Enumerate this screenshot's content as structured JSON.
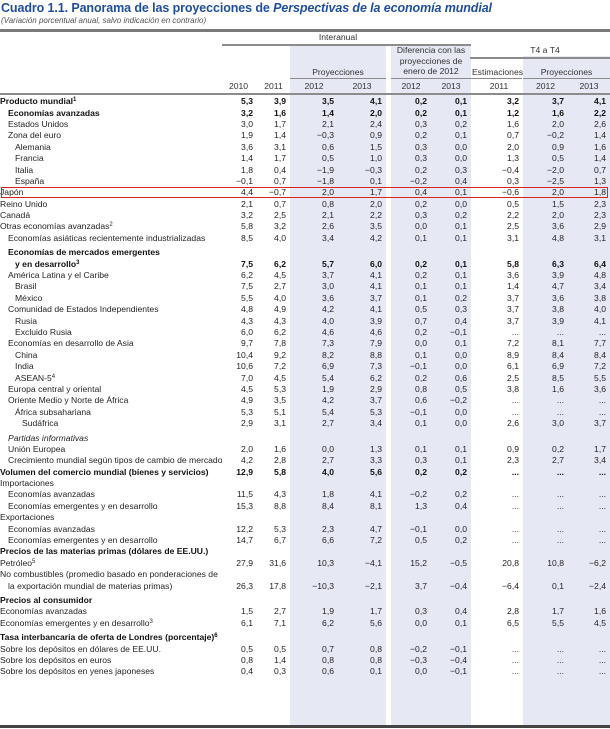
{
  "header": {
    "title_prefix": "Cuadro 1.1. Panorama de las proyecciones de ",
    "title_italic": "Perspectivas de la economía mundial",
    "subtitle": "(Variación porcentual anual, salvo indicación en contrario)"
  },
  "columns": {
    "group_interanual": "Interanual",
    "group_diferencia": "Diferencia con las proyecciones de enero de 2012",
    "group_t4": "T4 a T4",
    "proyecciones": "Proyecciones",
    "estimaciones": "Estimaciones",
    "years": [
      "2010",
      "2011",
      "2012",
      "2013",
      "2012",
      "2013",
      "2011",
      "2012",
      "2013"
    ]
  },
  "highlight": {
    "row": "España",
    "color": "#d8232a"
  },
  "colors": {
    "title": "#1f4e9c",
    "shade": "#e6e9f4"
  },
  "rows": [
    {
      "label": "Producto mundial",
      "sup": "1",
      "style": "bold",
      "indent": 0,
      "values": [
        "5,3",
        "3,9",
        "3,5",
        "4,1",
        "0,2",
        "0,1",
        "3,2",
        "3,7",
        "4,1"
      ]
    },
    {
      "label": "Economías avanzadas",
      "style": "bold",
      "indent": 1,
      "values": [
        "3,2",
        "1,6",
        "1,4",
        "2,0",
        "0,2",
        "0,1",
        "1,2",
        "1,6",
        "2,2"
      ]
    },
    {
      "label": "Estados Unidos",
      "indent": 1,
      "values": [
        "3,0",
        "1,7",
        "2,1",
        "2,4",
        "0,3",
        "0,2",
        "1,6",
        "2,0",
        "2,6"
      ]
    },
    {
      "label": "Zona del euro",
      "indent": 1,
      "values": [
        "1,9",
        "1,4",
        "−0,3",
        "0,9",
        "0,2",
        "0,1",
        "0,7",
        "−0,2",
        "1,4"
      ]
    },
    {
      "label": "Alemania",
      "indent": 2,
      "values": [
        "3,6",
        "3,1",
        "0,6",
        "1,5",
        "0,3",
        "0,0",
        "2,0",
        "0,9",
        "1,6"
      ]
    },
    {
      "label": "Francia",
      "indent": 2,
      "values": [
        "1,4",
        "1,7",
        "0,5",
        "1,0",
        "0,3",
        "0,0",
        "1,3",
        "0,5",
        "1,4"
      ]
    },
    {
      "label": "Italia",
      "indent": 2,
      "values": [
        "1,8",
        "0,4",
        "−1,9",
        "−0,3",
        "0,2",
        "0,3",
        "−0,4",
        "−2,0",
        "0,7"
      ]
    },
    {
      "label": "España",
      "indent": 2,
      "values": [
        "−0,1",
        "0,7",
        "−1,8",
        "0,1",
        "−0,2",
        "0,4",
        "0,3",
        "−2,5",
        "1,3"
      ]
    },
    {
      "label": "Japón",
      "indent": 0,
      "values": [
        "4,4",
        "−0,7",
        "2,0",
        "1,7",
        "0,4",
        "0,1",
        "−0,6",
        "2,0",
        "1,8"
      ]
    },
    {
      "label": "Reino Unido",
      "indent": 0,
      "values": [
        "2,1",
        "0,7",
        "0,8",
        "2,0",
        "0,2",
        "0,0",
        "0,5",
        "1,5",
        "2,3"
      ]
    },
    {
      "label": "Canadá",
      "indent": 0,
      "values": [
        "3,2",
        "2,5",
        "2,1",
        "2,2",
        "0,3",
        "0,2",
        "2,2",
        "2,0",
        "2,3"
      ]
    },
    {
      "label": "Otras economías avanzadas",
      "sup": "2",
      "indent": 0,
      "values": [
        "5,8",
        "3,2",
        "2,6",
        "3,5",
        "0,0",
        "0,1",
        "2,5",
        "3,6",
        "2,9"
      ]
    },
    {
      "label": "Economías asiáticas recientemente industrializadas",
      "indent": 1,
      "values": [
        "8,5",
        "4,0",
        "3,4",
        "4,2",
        "0,1",
        "0,1",
        "3,1",
        "4,8",
        "3,1"
      ]
    },
    {
      "label": "Economías de mercados emergentes",
      "style": "bold",
      "indent": 1,
      "spaced": true,
      "values": [
        "",
        "",
        "",
        "",
        "",
        "",
        "",
        "",
        ""
      ]
    },
    {
      "label": "y en desarrollo",
      "sup": "3",
      "style": "bold",
      "indent": 2,
      "values": [
        "7,5",
        "6,2",
        "5,7",
        "6,0",
        "0,2",
        "0,1",
        "5,8",
        "6,3",
        "6,4"
      ]
    },
    {
      "label": "América Latina y el Caribe",
      "indent": 1,
      "values": [
        "6,2",
        "4,5",
        "3,7",
        "4,1",
        "0,2",
        "0,1",
        "3,6",
        "3,9",
        "4,8"
      ]
    },
    {
      "label": "Brasil",
      "indent": 2,
      "values": [
        "7,5",
        "2,7",
        "3,0",
        "4,1",
        "0,1",
        "0,1",
        "1,4",
        "4,7",
        "3,4"
      ]
    },
    {
      "label": "México",
      "indent": 2,
      "values": [
        "5,5",
        "4,0",
        "3,6",
        "3,7",
        "0,1",
        "0,2",
        "3,7",
        "3,6",
        "3,8"
      ]
    },
    {
      "label": "Comunidad de Estados Independientes",
      "indent": 1,
      "values": [
        "4,8",
        "4,9",
        "4,2",
        "4,1",
        "0,5",
        "0,3",
        "3,7",
        "3,8",
        "4,0"
      ]
    },
    {
      "label": "Rusia",
      "indent": 2,
      "values": [
        "4,3",
        "4,3",
        "4,0",
        "3,9",
        "0,7",
        "0,4",
        "3,7",
        "3,9",
        "4,1"
      ]
    },
    {
      "label": "Excluido Rusia",
      "indent": 2,
      "values": [
        "6,0",
        "6,2",
        "4,6",
        "4,6",
        "0,2",
        "−0,1",
        "...",
        "...",
        "..."
      ]
    },
    {
      "label": "Economías en desarrollo de Asia",
      "indent": 1,
      "values": [
        "9,7",
        "7,8",
        "7,3",
        "7,9",
        "0,0",
        "0,1",
        "7,2",
        "8,1",
        "7,7"
      ]
    },
    {
      "label": "China",
      "indent": 2,
      "values": [
        "10,4",
        "9,2",
        "8,2",
        "8,8",
        "0,1",
        "0,0",
        "8,9",
        "8,4",
        "8,4"
      ]
    },
    {
      "label": "India",
      "indent": 2,
      "values": [
        "10,6",
        "7,2",
        "6,9",
        "7,3",
        "−0,1",
        "0,0",
        "6,1",
        "6,9",
        "7,2"
      ]
    },
    {
      "label": "ASEAN-5",
      "sup": "4",
      "indent": 2,
      "values": [
        "7,0",
        "4,5",
        "5,4",
        "6,2",
        "0,2",
        "0,6",
        "2,5",
        "8,5",
        "5,5"
      ]
    },
    {
      "label": "Europa central y oriental",
      "indent": 1,
      "values": [
        "4,5",
        "5,3",
        "1,9",
        "2,9",
        "0,8",
        "0,5",
        "3,8",
        "1,6",
        "3,6"
      ]
    },
    {
      "label": "Oriente Medio y Norte de África",
      "indent": 1,
      "values": [
        "4,9",
        "3,5",
        "4,2",
        "3,7",
        "0,6",
        "−0,2",
        "...",
        "...",
        "..."
      ]
    },
    {
      "label": "África subsahariana",
      "indent": 2,
      "values": [
        "5,3",
        "5,1",
        "5,4",
        "5,3",
        "−0,1",
        "0,0",
        "...",
        "...",
        "..."
      ]
    },
    {
      "label": "Sudáfrica",
      "indent": 3,
      "values": [
        "2,9",
        "3,1",
        "2,7",
        "3,4",
        "0,1",
        "0,0",
        "2,6",
        "3,0",
        "3,7"
      ]
    },
    {
      "label": "Partidas informativas",
      "style": "italic",
      "indent": 1,
      "spaced": true,
      "values": [
        "",
        "",
        "",
        "",
        "",
        "",
        "",
        "",
        ""
      ]
    },
    {
      "label": "Unión Europea",
      "indent": 1,
      "values": [
        "2,0",
        "1,6",
        "0,0",
        "1,3",
        "0,1",
        "0,1",
        "0,9",
        "0,2",
        "1,7"
      ]
    },
    {
      "label": "Crecimiento mundial según tipos de cambio de mercado",
      "indent": 1,
      "values": [
        "4,2",
        "2,8",
        "2,7",
        "3,3",
        "0,3",
        "0,1",
        "2,3",
        "2,7",
        "3,4"
      ]
    },
    {
      "label": "Volumen del comercio mundial (bienes y servicios)",
      "style": "bold",
      "indent": 0,
      "values": [
        "12,9",
        "5,8",
        "4,0",
        "5,6",
        "0,2",
        "0,2",
        "...",
        "...",
        "..."
      ]
    },
    {
      "label": "Importaciones",
      "indent": 0,
      "values": [
        "",
        "",
        "",
        "",
        "",
        "",
        "",
        "",
        ""
      ]
    },
    {
      "label": "Economías avanzadas",
      "indent": 1,
      "values": [
        "11,5",
        "4,3",
        "1,8",
        "4,1",
        "−0,2",
        "0,2",
        "...",
        "...",
        "..."
      ]
    },
    {
      "label": "Economías emergentes y en desarrollo",
      "indent": 1,
      "values": [
        "15,3",
        "8,8",
        "8,4",
        "8,1",
        "1,3",
        "0,4",
        "...",
        "...",
        "..."
      ]
    },
    {
      "label": "Exportaciones",
      "indent": 0,
      "values": [
        "",
        "",
        "",
        "",
        "",
        "",
        "",
        "",
        ""
      ]
    },
    {
      "label": "Economías avanzadas",
      "indent": 1,
      "values": [
        "12,2",
        "5,3",
        "2,3",
        "4,7",
        "−0,1",
        "0,0",
        "...",
        "...",
        "..."
      ]
    },
    {
      "label": "Economías emergentes y en desarrollo",
      "indent": 1,
      "values": [
        "14,7",
        "6,7",
        "6,6",
        "7,2",
        "0,5",
        "0,2",
        "...",
        "...",
        "..."
      ]
    },
    {
      "label": "Precios de las materias primas (dólares de EE.UU.)",
      "style": "bold",
      "indent": 0,
      "values": [
        "",
        "",
        "",
        "",
        "",
        "",
        "",
        "",
        ""
      ]
    },
    {
      "label": "Petróleo",
      "sup": "5",
      "indent": 0,
      "values": [
        "27,9",
        "31,6",
        "10,3",
        "−4,1",
        "15,2",
        "−0,5",
        "20,8",
        "10,8",
        "−6,2"
      ]
    },
    {
      "label": "No combustibles (promedio basado en ponderaciones de",
      "indent": 0,
      "values": [
        "",
        "",
        "",
        "",
        "",
        "",
        "",
        "",
        ""
      ]
    },
    {
      "label": "la exportación mundial de materias primas)",
      "indent": 1,
      "values": [
        "26,3",
        "17,8",
        "−10,3",
        "−2,1",
        "3,7",
        "−0,4",
        "−6,4",
        "0,1",
        "−2,4"
      ]
    },
    {
      "label": "Precios al consumidor",
      "style": "bold",
      "indent": 0,
      "spaced": true,
      "values": [
        "",
        "",
        "",
        "",
        "",
        "",
        "",
        "",
        ""
      ]
    },
    {
      "label": "Economías avanzadas",
      "indent": 0,
      "values": [
        "1,5",
        "2,7",
        "1,9",
        "1,7",
        "0,3",
        "0,4",
        "2,8",
        "1,7",
        "1,6"
      ]
    },
    {
      "label": "Economías emergentes y en desarrollo",
      "sup": "3",
      "indent": 0,
      "values": [
        "6,1",
        "7,1",
        "6,2",
        "5,6",
        "0,0",
        "0,1",
        "6,5",
        "5,5",
        "4,5"
      ]
    },
    {
      "label": "Tasa interbancaria de oferta de Londres (porcentaje)",
      "sup": "6",
      "style": "bold",
      "indent": 0,
      "spaced": true,
      "values": [
        "",
        "",
        "",
        "",
        "",
        "",
        "",
        "",
        ""
      ]
    },
    {
      "label": "Sobre los depósitos en dólares de EE.UU.",
      "indent": 0,
      "values": [
        "0,5",
        "0,5",
        "0,7",
        "0,8",
        "−0,2",
        "−0,1",
        "...",
        "...",
        "..."
      ]
    },
    {
      "label": "Sobre los depósitos en euros",
      "indent": 0,
      "values": [
        "0,8",
        "1,4",
        "0,8",
        "0,8",
        "−0,3",
        "−0,4",
        "...",
        "...",
        "..."
      ]
    },
    {
      "label": "Sobre los depósitos en yenes japoneses",
      "indent": 0,
      "values": [
        "0,4",
        "0,3",
        "0,6",
        "0,1",
        "0,0",
        "−0,1",
        "...",
        "...",
        "..."
      ]
    }
  ]
}
